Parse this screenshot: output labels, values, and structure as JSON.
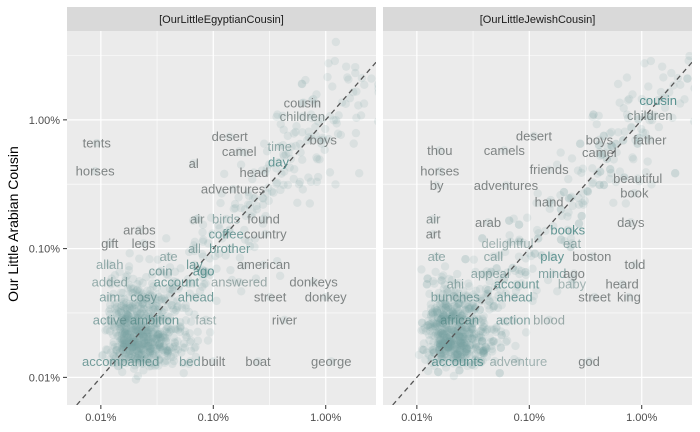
{
  "chart_data": {
    "type": "scatter",
    "ylabel": "Our Little Arabian Cousin",
    "xlabel": "",
    "log_scale": true,
    "xlim": [
      "0.005%",
      "2.8%"
    ],
    "ylim": [
      "0.0061%",
      "4.9%"
    ],
    "x_ticks": [
      "0.01%",
      "0.10%",
      "1.00%"
    ],
    "y_ticks": [
      "0.01%",
      "0.10%",
      "1.00%"
    ],
    "grid": true,
    "reference_line": "y = x (dashed)",
    "colors": {
      "panel_bg": "#ebebeb",
      "strip_bg": "#d9d9d9",
      "grid": "#ffffff",
      "point": "#7ba3a0",
      "label_high": "#4f8f8c",
      "label_low": "#777777",
      "dashed_line": "#555555"
    },
    "panels": [
      {
        "strip": "[OurLittleEgyptianCousin]",
        "words": [
          {
            "w": "cousin",
            "x": "0.62%",
            "y": "1.35%",
            "hue": 0.1
          },
          {
            "w": "children",
            "x": "0.62%",
            "y": "1.06%",
            "hue": 0.2
          },
          {
            "w": "boys",
            "x": "0.95%",
            "y": "0.70%",
            "hue": 0.1
          },
          {
            "w": "tents",
            "x": "0.0092%",
            "y": "0.66%",
            "hue": 0.1
          },
          {
            "w": "desert",
            "x": "0.14%",
            "y": "0.74%",
            "hue": 0.1
          },
          {
            "w": "camel",
            "x": "0.17%",
            "y": "0.57%",
            "hue": 0.1
          },
          {
            "w": "time",
            "x": "0.39%",
            "y": "0.62%",
            "hue": 0.6
          },
          {
            "w": "day",
            "x": "0.38%",
            "y": "0.47%",
            "hue": 0.9
          },
          {
            "w": "al",
            "x": "0.067%",
            "y": "0.46%",
            "hue": 0.1
          },
          {
            "w": "horses",
            "x": "0.0089%",
            "y": "0.40%",
            "hue": 0.1
          },
          {
            "w": "head",
            "x": "0.23%",
            "y": "0.39%",
            "hue": 0.1
          },
          {
            "w": "adventures",
            "x": "0.15%",
            "y": "0.29%",
            "hue": 0.1
          },
          {
            "w": "air",
            "x": "0.072%",
            "y": "0.17%",
            "hue": 0.2
          },
          {
            "w": "birds",
            "x": "0.13%",
            "y": "0.17%",
            "hue": 0.6
          },
          {
            "w": "found",
            "x": "0.28%",
            "y": "0.17%",
            "hue": 0.1
          },
          {
            "w": "arabs",
            "x": "0.022%",
            "y": "0.14%",
            "hue": 0.1
          },
          {
            "w": "coffee",
            "x": "0.13%",
            "y": "0.13%",
            "hue": 0.8
          },
          {
            "w": "country",
            "x": "0.29%",
            "y": "0.13%",
            "hue": 0.1
          },
          {
            "w": "gift",
            "x": "0.012%",
            "y": "0.11%",
            "hue": 0.1
          },
          {
            "w": "legs",
            "x": "0.024%",
            "y": "0.11%",
            "hue": 0.1
          },
          {
            "w": "all",
            "x": "0.068%",
            "y": "0.10%",
            "hue": 0.6
          },
          {
            "w": "brother",
            "x": "0.14%",
            "y": "0.10%",
            "hue": 0.8
          },
          {
            "w": "ate",
            "x": "0.040%",
            "y": "0.087%",
            "hue": 0.6
          },
          {
            "w": "allah",
            "x": "0.012%",
            "y": "0.075%",
            "hue": 0.6
          },
          {
            "w": "lay",
            "x": "0.068%",
            "y": "0.075%",
            "hue": 0.8
          },
          {
            "w": "american",
            "x": "0.28%",
            "y": "0.075%",
            "hue": 0.1
          },
          {
            "w": "coin",
            "x": "0.034%",
            "y": "0.067%",
            "hue": 0.7
          },
          {
            "w": "ago",
            "x": "0.082%",
            "y": "0.067%",
            "hue": 0.9
          },
          {
            "w": "added",
            "x": "0.012%",
            "y": "0.055%",
            "hue": 0.6
          },
          {
            "w": "account",
            "x": "0.047%",
            "y": "0.055%",
            "hue": 0.8
          },
          {
            "w": "answered",
            "x": "0.17%",
            "y": "0.055%",
            "hue": 0.4
          },
          {
            "w": "donkeys",
            "x": "0.78%",
            "y": "0.055%",
            "hue": 0.1
          },
          {
            "w": "aim",
            "x": "0.012%",
            "y": "0.042%",
            "hue": 0.7
          },
          {
            "w": "cosy",
            "x": "0.024%",
            "y": "0.042%",
            "hue": 0.7
          },
          {
            "w": "ahead",
            "x": "0.070%",
            "y": "0.042%",
            "hue": 0.8
          },
          {
            "w": "street",
            "x": "0.32%",
            "y": "0.042%",
            "hue": 0.1
          },
          {
            "w": "donkey",
            "x": "1.00%",
            "y": "0.042%",
            "hue": 0.1
          },
          {
            "w": "active",
            "x": "0.012%",
            "y": "0.028%",
            "hue": 0.7
          },
          {
            "w": "ambition",
            "x": "0.030%",
            "y": "0.028%",
            "hue": 0.8
          },
          {
            "w": "fast",
            "x": "0.086%",
            "y": "0.028%",
            "hue": 0.5
          },
          {
            "w": "river",
            "x": "0.43%",
            "y": "0.028%",
            "hue": 0.1
          },
          {
            "w": "accompanied",
            "x": "0.015%",
            "y": "0.0133%",
            "hue": 0.8
          },
          {
            "w": "bed",
            "x": "0.062%",
            "y": "0.0133%",
            "hue": 0.7
          },
          {
            "w": "built",
            "x": "0.10%",
            "y": "0.0133%",
            "hue": 0.1
          },
          {
            "w": "boat",
            "x": "0.25%",
            "y": "0.0133%",
            "hue": 0.1
          },
          {
            "w": "george",
            "x": "1.12%",
            "y": "0.0133%",
            "hue": 0.1
          }
        ]
      },
      {
        "strip": "[OurLittleJewishCousin]",
        "words": [
          {
            "w": "cousin",
            "x": "1.40%",
            "y": "1.42%",
            "hue": 0.95
          },
          {
            "w": "children",
            "x": "1.18%",
            "y": "1.08%",
            "hue": 0.2
          },
          {
            "w": "desert",
            "x": "0.11%",
            "y": "0.75%",
            "hue": 0.1
          },
          {
            "w": "boys",
            "x": "0.42%",
            "y": "0.70%",
            "hue": 0.1
          },
          {
            "w": "father",
            "x": "1.18%",
            "y": "0.70%",
            "hue": 0.1
          },
          {
            "w": "thou",
            "x": "0.016%",
            "y": "0.58%",
            "hue": 0.1
          },
          {
            "w": "camels",
            "x": "0.060%",
            "y": "0.58%",
            "hue": 0.1
          },
          {
            "w": "camel",
            "x": "0.42%",
            "y": "0.56%",
            "hue": 0.1
          },
          {
            "w": "horses",
            "x": "0.016%",
            "y": "0.40%",
            "hue": 0.1
          },
          {
            "w": "friends",
            "x": "0.15%",
            "y": "0.41%",
            "hue": 0.1
          },
          {
            "w": "beautiful",
            "x": "0.92%",
            "y": "0.35%",
            "hue": 0.1
          },
          {
            "w": "by",
            "x": "0.015%",
            "y": "0.31%",
            "hue": 0.1
          },
          {
            "w": "adventures",
            "x": "0.062%",
            "y": "0.31%",
            "hue": 0.1
          },
          {
            "w": "book",
            "x": "0.86%",
            "y": "0.27%",
            "hue": 0.1
          },
          {
            "w": "hand",
            "x": "0.15%",
            "y": "0.23%",
            "hue": 0.1
          },
          {
            "w": "air",
            "x": "0.014%",
            "y": "0.17%",
            "hue": 0.2
          },
          {
            "w": "arab",
            "x": "0.043%",
            "y": "0.16%",
            "hue": 0.1
          },
          {
            "w": "books",
            "x": "0.22%",
            "y": "0.14%",
            "hue": 0.9
          },
          {
            "w": "days",
            "x": "0.80%",
            "y": "0.16%",
            "hue": 0.1
          },
          {
            "w": "art",
            "x": "0.014%",
            "y": "0.13%",
            "hue": 0.1
          },
          {
            "w": "delightful",
            "x": "0.064%",
            "y": "0.11%",
            "hue": 0.5
          },
          {
            "w": "eat",
            "x": "0.24%",
            "y": "0.11%",
            "hue": 0.6
          },
          {
            "w": "ate",
            "x": "0.015%",
            "y": "0.087%",
            "hue": 0.6
          },
          {
            "w": "call",
            "x": "0.048%",
            "y": "0.087%",
            "hue": 0.6
          },
          {
            "w": "play",
            "x": "0.16%",
            "y": "0.087%",
            "hue": 0.9
          },
          {
            "w": "boston",
            "x": "0.36%",
            "y": "0.087%",
            "hue": 0.1
          },
          {
            "w": "told",
            "x": "0.87%",
            "y": "0.075%",
            "hue": 0.1
          },
          {
            "w": "appeal",
            "x": "0.045%",
            "y": "0.064%",
            "hue": 0.6
          },
          {
            "w": "mind",
            "x": "0.16%",
            "y": "0.064%",
            "hue": 0.7
          },
          {
            "w": "ago",
            "x": "0.25%",
            "y": "0.064%",
            "hue": 0.1
          },
          {
            "w": "ahi",
            "x": "0.022%",
            "y": "0.053%",
            "hue": 0.6
          },
          {
            "w": "account",
            "x": "0.077%",
            "y": "0.053%",
            "hue": 0.8
          },
          {
            "w": "baby",
            "x": "0.24%",
            "y": "0.053%",
            "hue": 0.5
          },
          {
            "w": "heard",
            "x": "0.67%",
            "y": "0.053%",
            "hue": 0.1
          },
          {
            "w": "bunches",
            "x": "0.022%",
            "y": "0.042%",
            "hue": 0.7
          },
          {
            "w": "ahead",
            "x": "0.074%",
            "y": "0.042%",
            "hue": 0.8
          },
          {
            "w": "street",
            "x": "0.38%",
            "y": "0.042%",
            "hue": 0.1
          },
          {
            "w": "king",
            "x": "0.77%",
            "y": "0.042%",
            "hue": 0.1
          },
          {
            "w": "african",
            "x": "0.024%",
            "y": "0.028%",
            "hue": 0.8
          },
          {
            "w": "action",
            "x": "0.072%",
            "y": "0.028%",
            "hue": 0.7
          },
          {
            "w": "blood",
            "x": "0.15%",
            "y": "0.028%",
            "hue": 0.4
          },
          {
            "w": "accounts",
            "x": "0.023%",
            "y": "0.0133%",
            "hue": 0.9
          },
          {
            "w": "adventure",
            "x": "0.080%",
            "y": "0.0133%",
            "hue": 0.5
          },
          {
            "w": "god",
            "x": "0.34%",
            "y": "0.0133%",
            "hue": 0.1
          }
        ]
      }
    ]
  }
}
